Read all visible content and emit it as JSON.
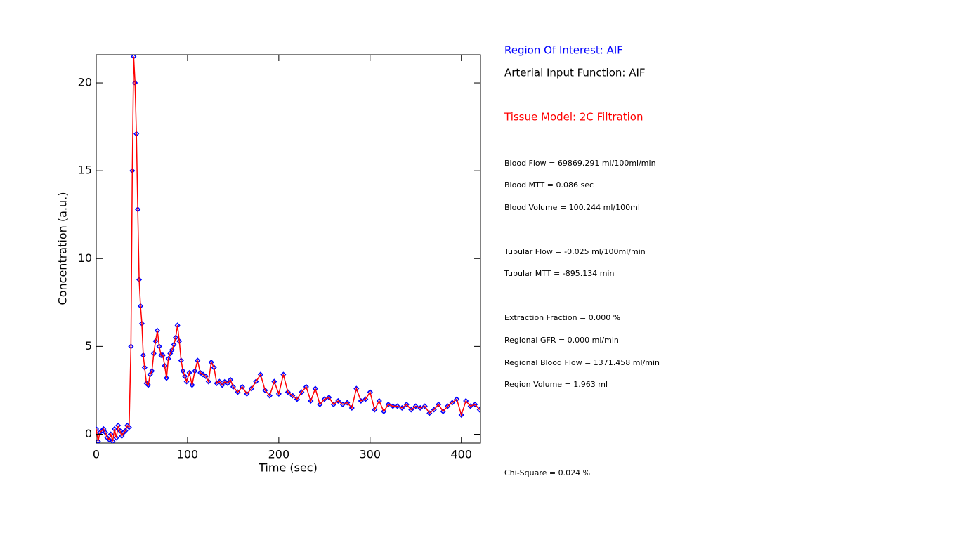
{
  "chart_data": {
    "type": "line",
    "xlabel": "Time (sec)",
    "ylabel": "Concentration (a.u.)",
    "x": [
      0,
      2,
      4,
      6,
      8,
      10,
      12,
      14,
      16,
      18,
      20,
      22,
      24,
      26,
      28,
      30,
      32,
      34,
      36,
      38,
      39.5,
      41,
      42.5,
      44,
      45.5,
      47,
      48.5,
      50,
      51.5,
      53,
      55,
      57,
      59,
      61,
      63,
      65,
      67,
      69,
      71,
      73,
      75,
      77,
      79,
      81,
      83,
      85,
      87,
      89,
      91,
      93,
      95,
      97,
      99,
      102,
      105,
      108,
      111,
      114,
      117,
      120,
      123,
      126,
      129,
      132,
      135,
      138,
      141,
      144,
      147,
      150,
      155,
      160,
      165,
      170,
      175,
      180,
      185,
      190,
      195,
      200,
      205,
      210,
      215,
      220,
      225,
      230,
      235,
      240,
      245,
      250,
      255,
      260,
      265,
      270,
      275,
      280,
      285,
      290,
      295,
      300,
      305,
      310,
      315,
      320,
      325,
      330,
      335,
      340,
      345,
      350,
      355,
      360,
      365,
      370,
      375,
      380,
      385,
      390,
      395,
      400,
      405,
      410,
      415,
      420
    ],
    "series": [
      {
        "color": "#ff0000",
        "marker_color": "#0000ff",
        "values": [
          0.3,
          -0.4,
          0.1,
          0.2,
          0.3,
          0.1,
          -0.2,
          -0.3,
          0.0,
          -0.4,
          0.3,
          -0.2,
          0.5,
          0.2,
          -0.1,
          0.1,
          0.2,
          0.5,
          0.4,
          5.0,
          15.0,
          21.5,
          20.0,
          17.1,
          12.8,
          8.8,
          7.3,
          6.3,
          4.5,
          3.8,
          2.9,
          2.8,
          3.4,
          3.6,
          4.6,
          5.3,
          5.9,
          5.0,
          4.5,
          4.5,
          3.9,
          3.2,
          4.3,
          4.6,
          4.8,
          5.1,
          5.5,
          6.2,
          5.3,
          4.2,
          3.6,
          3.3,
          3.0,
          3.5,
          2.8,
          3.6,
          4.2,
          3.5,
          3.4,
          3.3,
          3.0,
          4.1,
          3.8,
          2.9,
          3.0,
          2.8,
          3.0,
          2.9,
          3.1,
          2.7,
          2.4,
          2.7,
          2.3,
          2.6,
          3.0,
          3.4,
          2.5,
          2.2,
          3.0,
          2.3,
          3.4,
          2.4,
          2.2,
          2.0,
          2.4,
          2.7,
          1.9,
          2.6,
          1.7,
          2.0,
          2.1,
          1.7,
          1.9,
          1.7,
          1.8,
          1.5,
          2.6,
          1.9,
          2.0,
          2.4,
          1.4,
          1.9,
          1.3,
          1.7,
          1.6,
          1.6,
          1.5,
          1.7,
          1.4,
          1.6,
          1.5,
          1.6,
          1.2,
          1.4,
          1.7,
          1.3,
          1.6,
          1.8,
          2.0,
          1.1,
          1.9,
          1.6,
          1.7,
          1.4
        ]
      }
    ],
    "xlim": [
      0,
      421
    ],
    "ylim": [
      -0.5,
      21.6
    ],
    "xticks": [
      0,
      100,
      200,
      300,
      400
    ],
    "yticks": [
      0,
      5,
      10,
      15,
      20
    ]
  },
  "info": {
    "roi": "Region Of Interest: AIF",
    "aif": "Arterial Input Function: AIF",
    "model": "Tissue Model: 2C Filtration",
    "lines": [
      "Blood Flow = 69869.291 ml/100ml/min",
      "Blood MTT = 0.086 sec",
      "Blood Volume = 100.244 ml/100ml",
      "Tubular Flow = -0.025 ml/100ml/min",
      "Tubular MTT = -895.134 min",
      "Extraction Fraction = 0.000 %",
      "Regional GFR = 0.000 ml/min",
      "Regional Blood Flow = 1371.458 ml/min",
      "Region Volume = 1.963 ml",
      "Chi-Square = 0.024 %"
    ]
  }
}
